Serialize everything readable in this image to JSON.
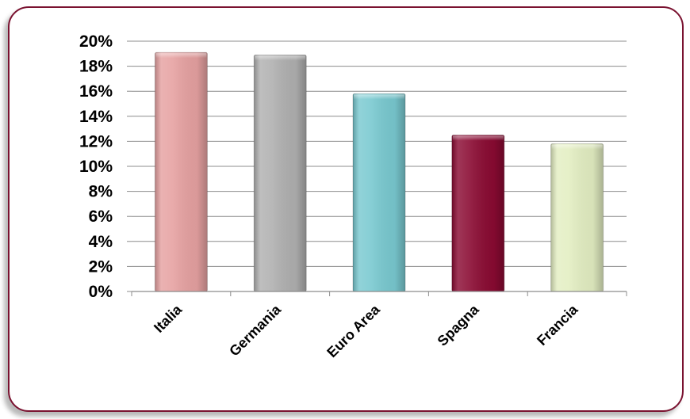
{
  "chart_data": {
    "type": "bar",
    "categories": [
      "Italia",
      "Germania",
      "Euro Area",
      "Spagna",
      "Francia"
    ],
    "values": [
      19.1,
      18.9,
      15.8,
      12.5,
      11.8
    ],
    "colors": [
      "#e6a1a1",
      "#b0b0b0",
      "#79c9d0",
      "#8a0a32",
      "#e3eec2"
    ],
    "title": "",
    "xlabel": "",
    "ylabel": "",
    "ylim": [
      0,
      20
    ],
    "yticks": [
      0,
      2,
      4,
      6,
      8,
      10,
      12,
      14,
      16,
      18,
      20
    ],
    "ytick_labels": [
      "0%",
      "2%",
      "4%",
      "6%",
      "8%",
      "10%",
      "12%",
      "14%",
      "16%",
      "18%",
      "20%"
    ],
    "grid": true,
    "legend": "none"
  }
}
